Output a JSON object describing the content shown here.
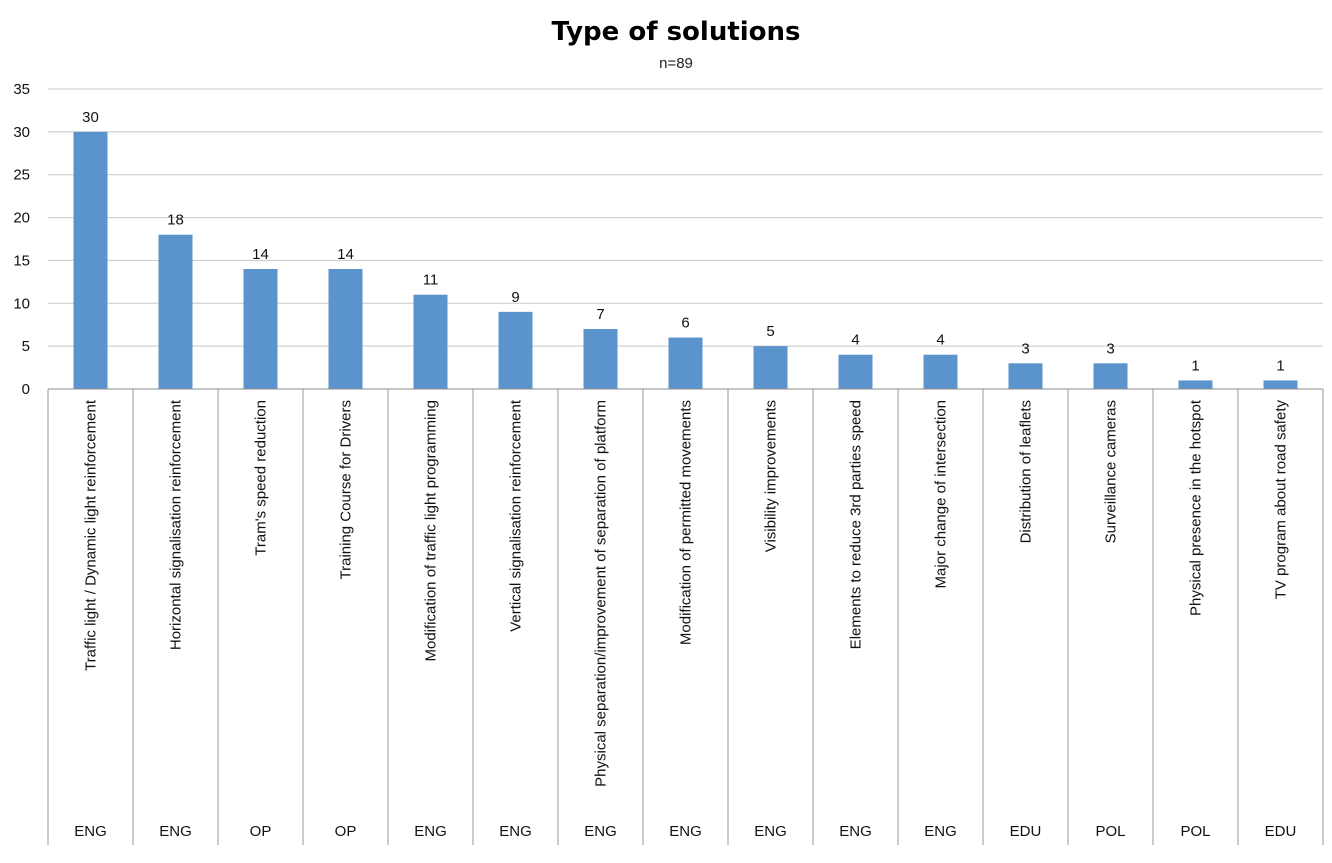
{
  "chart_data": {
    "type": "bar",
    "title": "Type of solutions",
    "subtitle": "n=89",
    "ylim": [
      0,
      35
    ],
    "yticks": [
      0,
      5,
      10,
      15,
      20,
      25,
      30,
      35
    ],
    "grid": true,
    "bar_color": "#5b93cc",
    "categories": [
      "Traffic light / Dynamic light reinforcement",
      "Horizontal signalisation reinforcement",
      "Tram's speed reduction",
      "Training Course for Drivers",
      "Modification of traffic light programming",
      "Vertical signalisation reinforcement",
      "Physical separation/improvement of separation of platform",
      "Modification of permitted movements",
      "Visibility improvements",
      "Elements to reduce 3rd parties speed",
      "Major change of intersection",
      "Distribution of leaflets",
      "Surveillance cameras",
      "Physical presence in the hotspot",
      "TV program about road safety"
    ],
    "groups": [
      "ENG",
      "ENG",
      "OP",
      "OP",
      "ENG",
      "ENG",
      "ENG",
      "ENG",
      "ENG",
      "ENG",
      "ENG",
      "EDU",
      "POL",
      "POL",
      "EDU"
    ],
    "values": [
      30,
      18,
      14,
      14,
      11,
      9,
      7,
      6,
      5,
      4,
      4,
      3,
      3,
      1,
      1
    ]
  }
}
